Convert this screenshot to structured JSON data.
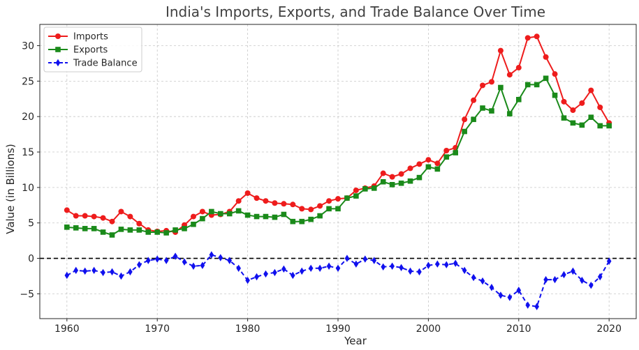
{
  "chart_data": {
    "type": "line",
    "title": "India's Imports, Exports, and Trade Balance Over Time",
    "xlabel": "Year",
    "ylabel": "Value (in Billions)",
    "xlim": [
      1957,
      2023
    ],
    "ylim": [
      -8.5,
      33
    ],
    "xticks": [
      1960,
      1970,
      1980,
      1990,
      2000,
      2010,
      2020
    ],
    "yticks": [
      -5,
      0,
      5,
      10,
      15,
      20,
      25,
      30
    ],
    "grid": true,
    "legend_position": "top-left",
    "zero_line": {
      "value": 0,
      "style": "dashed",
      "color": "#000000"
    },
    "x": [
      1960,
      1961,
      1962,
      1963,
      1964,
      1965,
      1966,
      1967,
      1968,
      1969,
      1970,
      1971,
      1972,
      1973,
      1974,
      1975,
      1976,
      1977,
      1978,
      1979,
      1980,
      1981,
      1982,
      1983,
      1984,
      1985,
      1986,
      1987,
      1988,
      1989,
      1990,
      1991,
      1992,
      1993,
      1994,
      1995,
      1996,
      1997,
      1998,
      1999,
      2000,
      2001,
      2002,
      2003,
      2004,
      2005,
      2006,
      2007,
      2008,
      2009,
      2010,
      2011,
      2012,
      2013,
      2014,
      2015,
      2016,
      2017,
      2018,
      2019,
      2020
    ],
    "series": [
      {
        "name": "Imports",
        "color": "#ee1c1c",
        "marker": "circle",
        "line_style": "solid",
        "values": [
          6.8,
          6.0,
          6.0,
          5.9,
          5.7,
          5.2,
          6.6,
          5.9,
          4.9,
          4.0,
          3.8,
          3.9,
          3.7,
          4.7,
          5.9,
          6.6,
          6.1,
          6.2,
          6.6,
          8.1,
          9.2,
          8.5,
          8.1,
          7.8,
          7.7,
          7.6,
          7.0,
          6.9,
          7.4,
          8.1,
          8.4,
          8.5,
          9.6,
          9.9,
          10.2,
          12.0,
          11.5,
          11.9,
          12.7,
          13.3,
          13.9,
          13.4,
          15.2,
          15.6,
          19.6,
          22.3,
          24.4,
          24.9,
          29.3,
          25.9,
          26.9,
          31.1,
          31.3,
          28.4,
          26.0,
          22.1,
          20.9,
          21.9,
          23.7,
          21.3,
          19.1
        ]
      },
      {
        "name": "Exports",
        "color": "#1a8a1a",
        "marker": "square",
        "line_style": "solid",
        "values": [
          4.4,
          4.3,
          4.2,
          4.2,
          3.7,
          3.3,
          4.1,
          4.0,
          4.0,
          3.7,
          3.7,
          3.6,
          4.0,
          4.2,
          4.8,
          5.6,
          6.6,
          6.3,
          6.3,
          6.7,
          6.1,
          5.9,
          5.9,
          5.8,
          6.2,
          5.2,
          5.2,
          5.5,
          6.0,
          7.0,
          7.0,
          8.5,
          8.8,
          9.8,
          9.9,
          10.8,
          10.4,
          10.6,
          10.9,
          11.4,
          12.9,
          12.6,
          14.3,
          14.9,
          17.9,
          19.6,
          21.2,
          20.8,
          24.1,
          20.4,
          22.4,
          24.5,
          24.5,
          25.4,
          23.0,
          19.8,
          19.1,
          18.8,
          19.9,
          18.7,
          18.7
        ]
      },
      {
        "name": "Trade Balance",
        "color": "#1010ee",
        "marker": "diamond",
        "line_style": "dashed",
        "values": [
          -2.4,
          -1.7,
          -1.8,
          -1.7,
          -2.0,
          -1.9,
          -2.5,
          -1.9,
          -0.9,
          -0.3,
          -0.1,
          -0.3,
          0.3,
          -0.5,
          -1.1,
          -1.0,
          0.5,
          0.1,
          -0.3,
          -1.4,
          -3.1,
          -2.6,
          -2.2,
          -2.0,
          -1.5,
          -2.4,
          -1.8,
          -1.4,
          -1.4,
          -1.1,
          -1.4,
          0.0,
          -0.8,
          -0.1,
          -0.3,
          -1.2,
          -1.1,
          -1.3,
          -1.8,
          -1.9,
          -1.0,
          -0.8,
          -0.9,
          -0.7,
          -1.7,
          -2.7,
          -3.2,
          -4.1,
          -5.2,
          -5.5,
          -4.5,
          -6.6,
          -6.8,
          -3.0,
          -3.0,
          -2.3,
          -1.8,
          -3.1,
          -3.8,
          -2.6,
          -0.4
        ]
      }
    ]
  }
}
